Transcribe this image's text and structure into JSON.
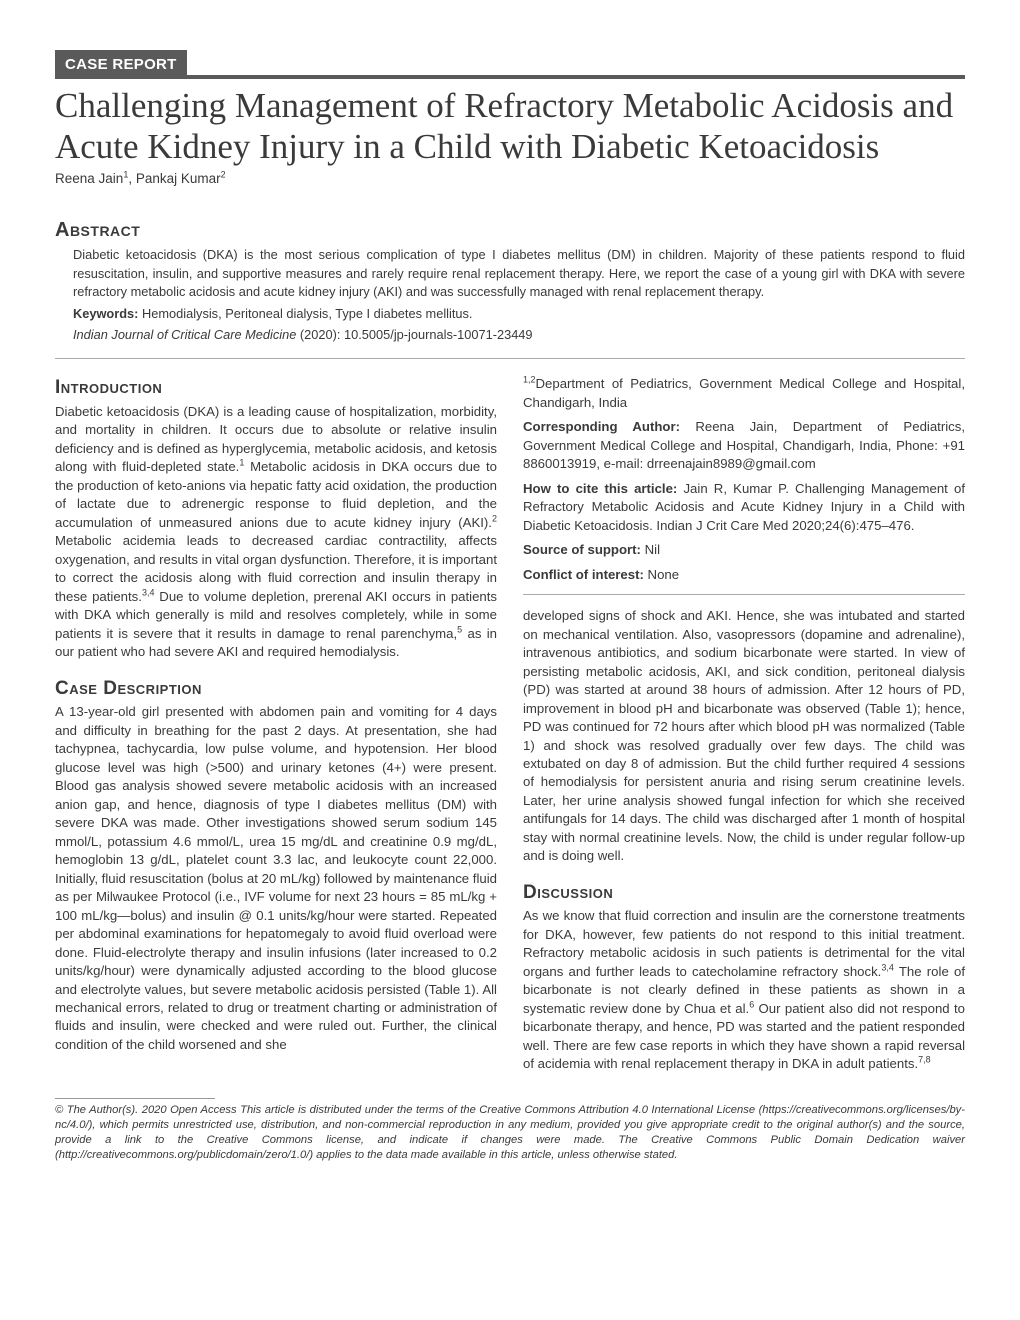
{
  "badge": "CASE REPORT",
  "title": "Challenging Management of Refractory Metabolic Acidosis and Acute Kidney Injury in a Child with Diabetic Ketoacidosis",
  "authors_html": "Reena Jain<sup>1</sup>, Pankaj Kumar<sup>2</sup>",
  "abstract": {
    "heading": "Abstract",
    "body": "Diabetic ketoacidosis (DKA) is the most serious complication of type I diabetes mellitus (DM) in children. Majority of these patients respond to fluid resuscitation, insulin, and supportive measures and rarely require renal replacement therapy. Here, we report the case of a young girl with DKA with severe refractory metabolic acidosis and acute kidney injury (AKI) and was successfully managed with renal replacement therapy.",
    "keywords_label": "Keywords:",
    "keywords": "Hemodialysis, Peritoneal dialysis, Type I diabetes mellitus.",
    "journal": "Indian Journal of Critical Care Medicine",
    "journal_tail": " (2020): 10.5005/jp-journals-10071-23449"
  },
  "sections": {
    "intro_h": "Introduction",
    "intro_p1": "Diabetic ketoacidosis (DKA) is a leading cause of hospitalization, morbidity, and mortality in children. It occurs due to absolute or relative insulin deficiency and is defined as hyperglycemia, metabolic acidosis, and ketosis along with fluid-depleted state.",
    "intro_p2": " Metabolic acidosis in DKA occurs due to the production of keto-anions via hepatic fatty acid oxidation, the production of lactate due to adrenergic response to fluid depletion, and the accumulation of unmeasured anions due to acute kidney injury (AKI).",
    "intro_p3": " Metabolic acidemia leads to decreased cardiac contractility, affects oxygenation, and results in vital organ dysfunction. Therefore, it is important to correct the acidosis along with fluid correction and insulin therapy in these patients.",
    "intro_p4": " Due to volume depletion, prerenal AKI occurs in patients with DKA which generally is mild and resolves completely, while in some patients it is severe that it results in damage to renal parenchyma,",
    "intro_p5": " as in our patient who had severe AKI and required hemodialysis.",
    "case_h": "Case Description",
    "case_p": "A 13-year-old girl presented with abdomen pain and vomiting for 4 days and difficulty in breathing for the past 2 days. At presentation, she had tachypnea, tachycardia, low pulse volume, and hypotension. Her blood glucose level was high (>500) and urinary ketones (4+) were present. Blood gas analysis showed severe metabolic acidosis with an increased anion gap, and hence, diagnosis of type I diabetes mellitus (DM) with severe DKA was made. Other investigations showed serum sodium 145 mmol/L, potassium 4.6 mmol/L, urea 15 mg/dL and creatinine 0.9 mg/dL, hemoglobin 13 g/dL, platelet count 3.3 lac, and leukocyte count 22,000. Initially, fluid resuscitation (bolus at 20 mL/kg) followed by maintenance fluid as per Milwaukee Protocol (i.e., IVF volume for next 23 hours = 85 mL/kg + 100 mL/kg—bolus) and insulin @ 0.1 units/kg/hour were started. Repeated per abdominal examinations for hepatomegaly to avoid fluid overload were done. Fluid-electrolyte therapy and insulin infusions (later increased to 0.2 units/kg/hour) were dynamically adjusted according to the blood glucose and electrolyte values, but severe metabolic acidosis persisted (Table 1). All mechanical errors, related to drug or treatment charting or administration of fluids and insulin, were checked and were ruled out. Further, the clinical condition of the child worsened and she ",
    "affil_dept": "Department of Pediatrics, Government Medical College and Hospital, Chandigarh, India",
    "corr_label": "Corresponding Author:",
    "corr_body": " Reena Jain, Department of Pediatrics, Government Medical College and Hospital, Chandigarh, India, Phone: +91 8860013919, e-mail: drreenajain8989@gmail.com",
    "cite_label": "How to cite this article:",
    "cite_body": " Jain R, Kumar P. Challenging Management of Refractory Metabolic Acidosis and Acute Kidney Injury in a Child with Diabetic Ketoacidosis. Indian J Crit Care Med 2020;24(6):475–476.",
    "support_label": "Source of support:",
    "support_val": " Nil",
    "conflict_label": "Conflict of interest:",
    "conflict_val": " None",
    "case_p2": "developed signs of shock and AKI. Hence, she was intubated and started on mechanical ventilation. Also, vasopressors (dopamine and adrenaline), intravenous antibiotics, and sodium bicarbonate were started. In view of persisting metabolic acidosis, AKI, and sick condition, peritoneal dialysis (PD) was started at around 38 hours of admission. After 12 hours of PD, improvement in blood pH and bicarbonate was observed (Table 1); hence, PD was continued for 72 hours after which blood pH was normalized (Table 1) and shock was resolved gradually over few days. The child was extubated on day 8 of admission. But the child further required 4 sessions of hemodialysis for persistent anuria and rising serum creatinine levels. Later, her urine analysis showed fungal infection for which she received antifungals for 14 days. The child was discharged after 1 month of hospital stay with normal creatinine levels. Now, the child is under regular follow-up and is doing well.",
    "disc_h": "Discussion",
    "disc_p": "As we know that fluid correction and insulin are the cornerstone treatments for DKA, however, few patients do not respond to this initial treatment. Refractory metabolic acidosis in such patients is detrimental for the vital organs and further leads to catecholamine refractory shock.",
    "disc_p2": " The role of bicarbonate is not clearly defined in these patients as shown in a systematic review done by Chua et al.",
    "disc_p3": " Our patient also did not respond to bicarbonate therapy, and hence, PD was started and the patient responded well. There are few case reports in which they have shown a rapid reversal of acidemia with renal replacement therapy in DKA in adult patients."
  },
  "license": "© The Author(s). 2020 Open Access This article is distributed under the terms of the Creative Commons Attribution 4.0 International License (https://creativecommons.org/licenses/by-nc/4.0/), which permits unrestricted use, distribution, and non-commercial reproduction in any medium, provided you give appropriate credit to the original author(s) and the source, provide a link to the Creative Commons license, and indicate if changes were made. The Creative Commons Public Domain Dedication waiver (http://creativecommons.org/publicdomain/zero/1.0/) applies to the data made available in this article, unless otherwise stated."
}
